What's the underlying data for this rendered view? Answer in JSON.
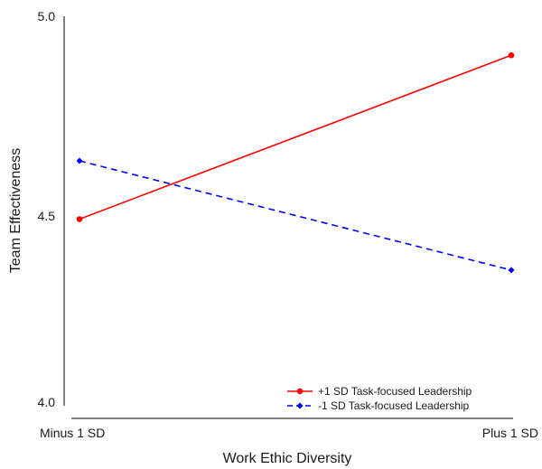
{
  "chart_data": {
    "type": "line",
    "title": "",
    "xlabel": "Work Ethic Diversity",
    "ylabel": "Team Effectiveness",
    "categories": [
      "Minus 1 SD",
      "Plus 1 SD"
    ],
    "ylim": [
      4.0,
      5.0
    ],
    "yticks": [
      "4.0",
      "4.5",
      "5.0"
    ],
    "grid": false,
    "legend_position": "bottom-right",
    "series": [
      {
        "name": "+1 SD Task-focused Leadership",
        "values": [
          4.5,
          4.95
        ],
        "color": "#ff0000",
        "line_style": "solid",
        "marker": "circle"
      },
      {
        "name": "-1 SD Task-focused Leadership",
        "values": [
          4.66,
          4.36
        ],
        "color": "#0000ff",
        "line_style": "dashed",
        "marker": "diamond"
      }
    ]
  }
}
